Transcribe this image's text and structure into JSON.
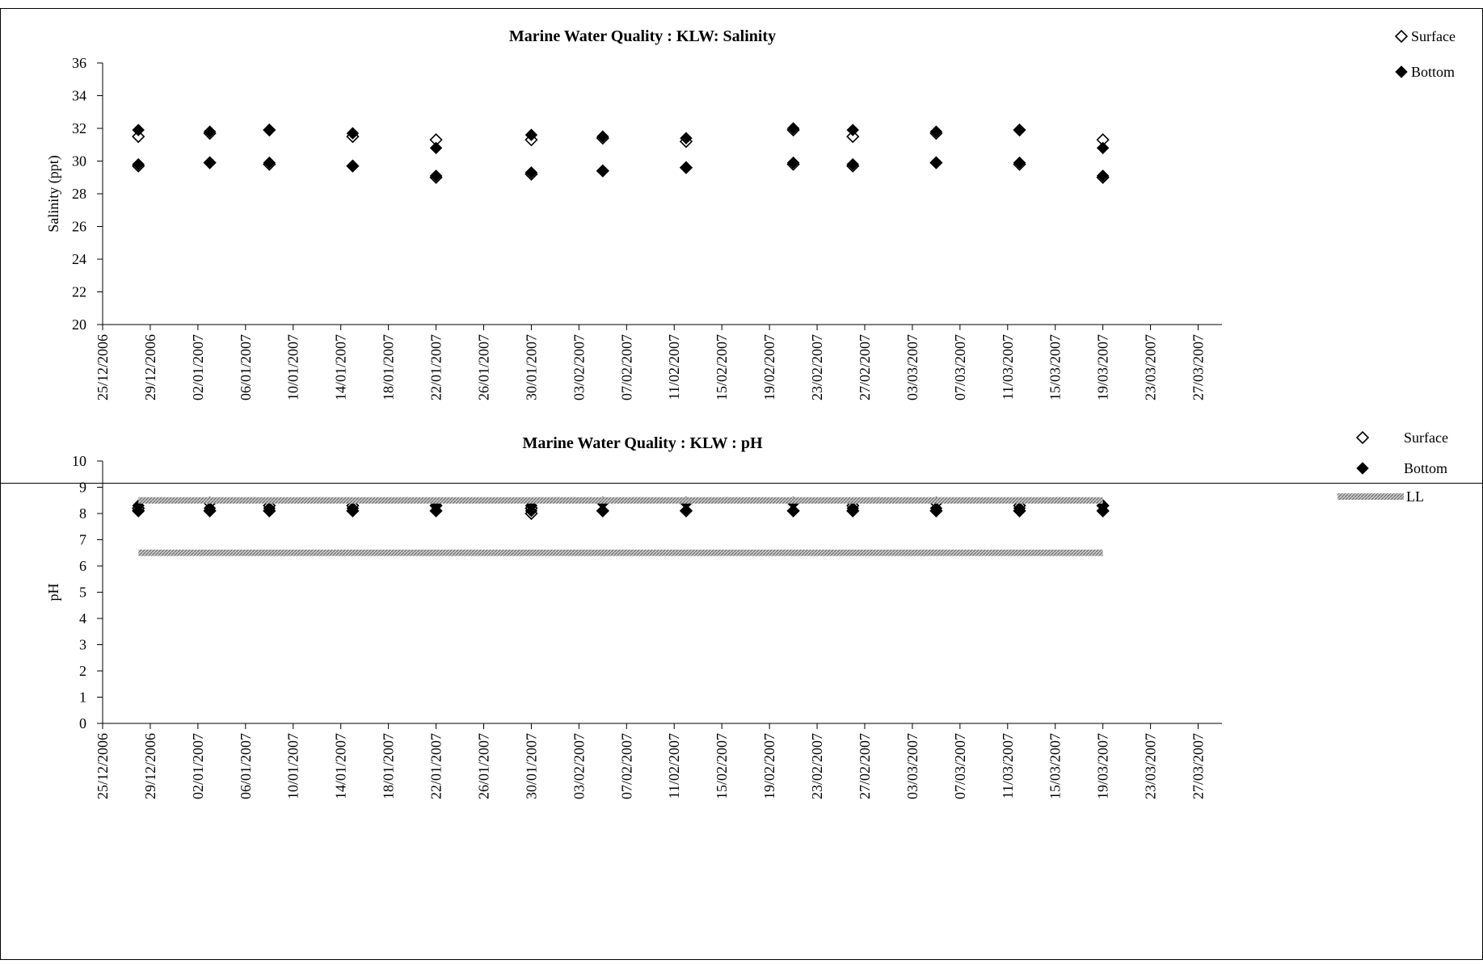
{
  "chart_data": [
    {
      "type": "scatter",
      "title": "Marine Water Quality : KLW: Salinity",
      "xlabel": "",
      "ylabel": "Salinity (ppt)",
      "ylim": [
        20,
        36
      ],
      "yticks": [
        20,
        22,
        24,
        26,
        28,
        30,
        32,
        34,
        36
      ],
      "xlim": [
        "25/12/2006",
        "29/03/2007"
      ],
      "xticks": [
        "25/12/2006",
        "29/12/2006",
        "02/01/2007",
        "06/01/2007",
        "10/01/2007",
        "14/01/2007",
        "18/01/2007",
        "22/01/2007",
        "26/01/2007",
        "30/01/2007",
        "03/02/2007",
        "07/02/2007",
        "11/02/2007",
        "15/02/2007",
        "19/02/2007",
        "23/02/2007",
        "27/02/2007",
        "03/03/2007",
        "07/03/2007",
        "11/03/2007",
        "15/03/2007",
        "19/03/2007",
        "23/03/2007",
        "27/03/2007"
      ],
      "grid": false,
      "legend_position": "top-right",
      "series": [
        {
          "name": "Surface",
          "marker": "diamond-open",
          "x": [
            "28/12/2006",
            "28/12/2006",
            "03/01/2007",
            "03/01/2007",
            "08/01/2007",
            "08/01/2007",
            "15/01/2007",
            "15/01/2007",
            "22/01/2007",
            "22/01/2007",
            "30/01/2007",
            "30/01/2007",
            "05/02/2007",
            "05/02/2007",
            "12/02/2007",
            "12/02/2007",
            "21/02/2007",
            "21/02/2007",
            "26/02/2007",
            "26/02/2007",
            "05/03/2007",
            "05/03/2007",
            "12/03/2007",
            "12/03/2007",
            "19/03/2007",
            "19/03/2007"
          ],
          "y": [
            31.5,
            29.7,
            31.7,
            29.9,
            31.9,
            29.8,
            31.5,
            29.7,
            31.3,
            29.0,
            31.3,
            29.2,
            31.4,
            29.4,
            31.2,
            29.6,
            31.9,
            29.8,
            31.5,
            29.7,
            31.7,
            29.9,
            31.9,
            29.8,
            31.3,
            29.0
          ]
        },
        {
          "name": "Bottom",
          "marker": "diamond-filled",
          "x": [
            "28/12/2006",
            "28/12/2006",
            "03/01/2007",
            "03/01/2007",
            "08/01/2007",
            "08/01/2007",
            "15/01/2007",
            "15/01/2007",
            "22/01/2007",
            "22/01/2007",
            "30/01/2007",
            "30/01/2007",
            "05/02/2007",
            "05/02/2007",
            "12/02/2007",
            "12/02/2007",
            "21/02/2007",
            "21/02/2007",
            "26/02/2007",
            "26/02/2007",
            "05/03/2007",
            "05/03/2007",
            "12/03/2007",
            "12/03/2007",
            "19/03/2007",
            "19/03/2007"
          ],
          "y": [
            31.9,
            29.8,
            31.8,
            29.9,
            31.9,
            29.9,
            31.7,
            29.7,
            30.8,
            29.1,
            31.6,
            29.3,
            31.5,
            29.4,
            31.4,
            29.6,
            32.0,
            29.9,
            31.9,
            29.8,
            31.8,
            29.9,
            31.9,
            29.9,
            30.8,
            29.1
          ]
        }
      ]
    },
    {
      "type": "scatter",
      "title": "Marine Water Quality : KLW : pH",
      "xlabel": "",
      "ylabel": "pH",
      "ylim": [
        0,
        10
      ],
      "yticks": [
        0,
        1,
        2,
        3,
        4,
        5,
        6,
        7,
        8,
        9,
        10
      ],
      "xlim": [
        "25/12/2006",
        "29/03/2007"
      ],
      "xticks": [
        "25/12/2006",
        "29/12/2006",
        "02/01/2007",
        "06/01/2007",
        "10/01/2007",
        "14/01/2007",
        "18/01/2007",
        "22/01/2007",
        "26/01/2007",
        "30/01/2007",
        "03/02/2007",
        "07/02/2007",
        "11/02/2007",
        "15/02/2007",
        "19/02/2007",
        "23/02/2007",
        "27/02/2007",
        "03/03/2007",
        "07/03/2007",
        "11/03/2007",
        "15/03/2007",
        "19/03/2007",
        "23/03/2007",
        "27/03/2007"
      ],
      "grid": false,
      "legend_position": "top-right",
      "series": [
        {
          "name": "Surface",
          "marker": "diamond-open",
          "x": [
            "28/12/2006",
            "28/12/2006",
            "03/01/2007",
            "03/01/2007",
            "08/01/2007",
            "08/01/2007",
            "15/01/2007",
            "15/01/2007",
            "22/01/2007",
            "22/01/2007",
            "30/01/2007",
            "30/01/2007",
            "05/02/2007",
            "05/02/2007",
            "12/02/2007",
            "12/02/2007",
            "21/02/2007",
            "21/02/2007",
            "26/02/2007",
            "26/02/2007",
            "05/03/2007",
            "05/03/2007",
            "12/03/2007",
            "12/03/2007",
            "19/03/2007",
            "19/03/2007"
          ],
          "y": [
            8.2,
            8.1,
            8.4,
            8.1,
            8.3,
            8.1,
            8.3,
            8.1,
            8.3,
            8.1,
            8.2,
            8.0,
            8.4,
            8.1,
            8.4,
            8.1,
            8.4,
            8.1,
            8.3,
            8.1,
            8.4,
            8.1,
            8.3,
            8.1,
            8.3,
            8.1
          ]
        },
        {
          "name": "Bottom",
          "marker": "diamond-filled",
          "x": [
            "28/12/2006",
            "28/12/2006",
            "03/01/2007",
            "03/01/2007",
            "08/01/2007",
            "08/01/2007",
            "15/01/2007",
            "15/01/2007",
            "22/01/2007",
            "22/01/2007",
            "30/01/2007",
            "30/01/2007",
            "05/02/2007",
            "05/02/2007",
            "12/02/2007",
            "12/02/2007",
            "21/02/2007",
            "21/02/2007",
            "26/02/2007",
            "26/02/2007",
            "05/03/2007",
            "05/03/2007",
            "12/03/2007",
            "12/03/2007",
            "19/03/2007",
            "19/03/2007"
          ],
          "y": [
            8.3,
            8.1,
            8.2,
            8.1,
            8.2,
            8.1,
            8.2,
            8.1,
            8.3,
            8.1,
            8.3,
            8.1,
            8.4,
            8.1,
            8.4,
            8.1,
            8.4,
            8.1,
            8.2,
            8.1,
            8.2,
            8.1,
            8.2,
            8.1,
            8.3,
            8.1
          ]
        },
        {
          "name": "LL",
          "marker": "band-line",
          "color": "#8a8a8a",
          "lines": [
            {
              "x": [
                "28/12/2006",
                "19/03/2007"
              ],
              "y": [
                8.5,
                8.5
              ]
            },
            {
              "x": [
                "28/12/2006",
                "19/03/2007"
              ],
              "y": [
                6.5,
                6.5
              ]
            }
          ]
        }
      ]
    }
  ]
}
